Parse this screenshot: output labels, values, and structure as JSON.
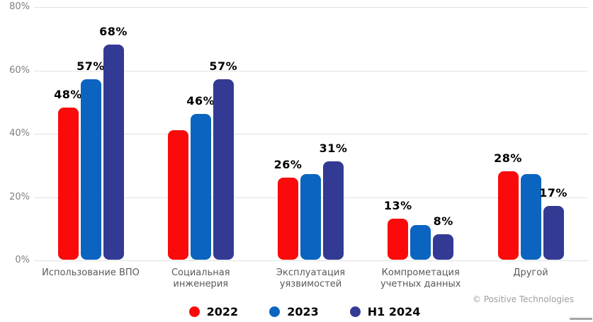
{
  "chart_data": {
    "type": "bar",
    "title": "",
    "categories": [
      "Использование ВПО",
      "Социальная инженерия",
      "Эксплуатация уязвимостей",
      "Компрометация учетных данных",
      "Другой"
    ],
    "series": [
      {
        "name": "2022",
        "color": "#fa0a0a",
        "values": [
          48,
          41,
          26,
          13,
          28
        ],
        "labels": [
          "48%",
          "",
          "26%",
          "13%",
          "28%"
        ]
      },
      {
        "name": "2023",
        "color": "#0b64c0",
        "values": [
          57,
          46,
          27,
          11,
          27
        ],
        "labels": [
          "57%",
          "46%",
          "",
          "",
          ""
        ]
      },
      {
        "name": "H1 2024",
        "color": "#333a94",
        "values": [
          68,
          57,
          31,
          8,
          17
        ],
        "labels": [
          "68%",
          "57%",
          "31%",
          "8%",
          "17%"
        ]
      }
    ],
    "ylim": [
      0,
      80
    ],
    "yticks": [
      "0%",
      "20%",
      "40%",
      "60%",
      "80%"
    ],
    "grid": true,
    "legend_position": "bottom"
  },
  "footer": {
    "copyright": "© Positive Technologies"
  }
}
